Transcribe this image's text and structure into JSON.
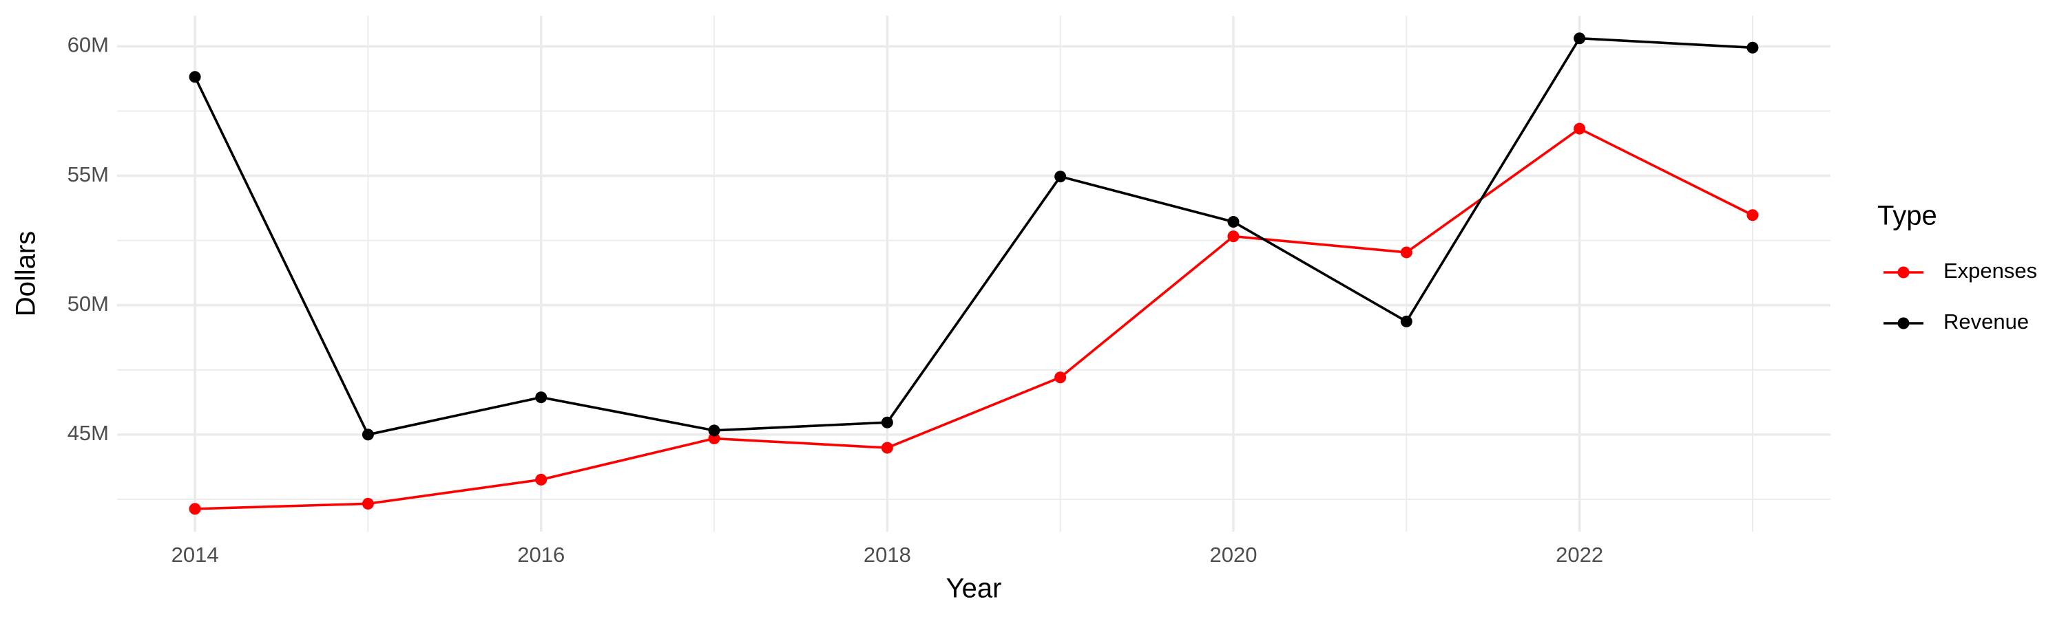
{
  "chart_data": {
    "type": "line",
    "x_label": "Year",
    "y_label": "Dollars",
    "legend_title": "Type",
    "legend_position": "right",
    "grid": true,
    "x": [
      2014,
      2015,
      2016,
      2017,
      2018,
      2019,
      2020,
      2021,
      2022,
      2023
    ],
    "series": [
      {
        "name": "Expenses",
        "color": "#ff0000",
        "values": [
          42130000,
          42330000,
          43260000,
          44850000,
          44490000,
          47210000,
          52660000,
          52040000,
          56820000,
          53480000
        ]
      },
      {
        "name": "Revenue",
        "color": "#000000",
        "values": [
          58820000,
          45000000,
          46440000,
          45160000,
          45470000,
          54970000,
          53220000,
          49370000,
          60310000,
          59950000
        ]
      }
    ],
    "xlim": [
      2013.55,
      2023.45
    ],
    "xticks": [
      2014,
      2016,
      2018,
      2020,
      2022
    ],
    "ylim": [
      41250000,
      61180000
    ],
    "yticks": [
      {
        "value": 45000000,
        "label": "45M"
      },
      {
        "value": 50000000,
        "label": "50M"
      },
      {
        "value": 55000000,
        "label": "55M"
      },
      {
        "value": 60000000,
        "label": "60M"
      }
    ]
  }
}
